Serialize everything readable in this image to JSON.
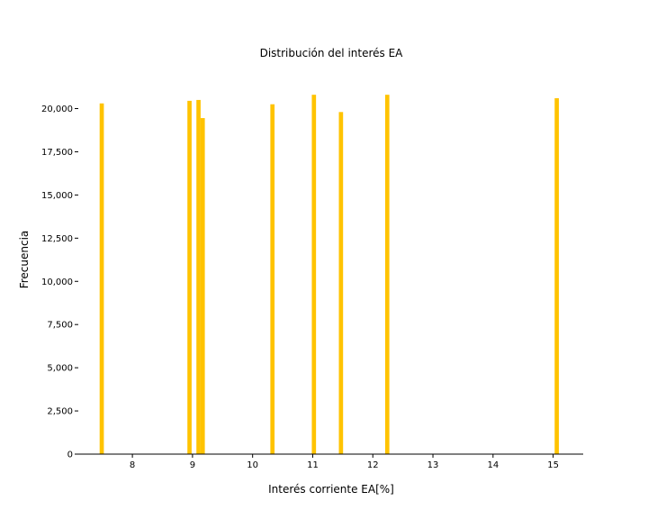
{
  "chart_data": {
    "type": "bar",
    "title": "Distribución del interés EA",
    "xlabel": "Interés corriente EA[%]",
    "ylabel": "Frecuencia",
    "xlim": [
      7.1,
      15.5
    ],
    "ylim": [
      0,
      21800
    ],
    "x_ticks": [
      8,
      9,
      10,
      11,
      12,
      13,
      14,
      15
    ],
    "x_tick_labels": [
      "8",
      "9",
      "10",
      "11",
      "12",
      "13",
      "14",
      "15"
    ],
    "y_ticks": [
      0,
      2500,
      5000,
      7500,
      10000,
      12500,
      15000,
      17500,
      20000
    ],
    "y_tick_labels": [
      "0",
      "2,500",
      "5,000",
      "7,500",
      "10,000",
      "12,500",
      "15,000",
      "17,500",
      "20,000"
    ],
    "bar_color": "#ffc300",
    "bin_width": 0.07,
    "bins": [
      {
        "x": 7.49,
        "value": 20300
      },
      {
        "x": 8.95,
        "value": 20450
      },
      {
        "x": 9.1,
        "value": 20500
      },
      {
        "x": 9.17,
        "value": 19450
      },
      {
        "x": 10.33,
        "value": 20250
      },
      {
        "x": 11.02,
        "value": 20800
      },
      {
        "x": 11.47,
        "value": 19800
      },
      {
        "x": 12.24,
        "value": 20800
      },
      {
        "x": 15.06,
        "value": 20600
      }
    ],
    "grid": false,
    "legend": "none"
  }
}
